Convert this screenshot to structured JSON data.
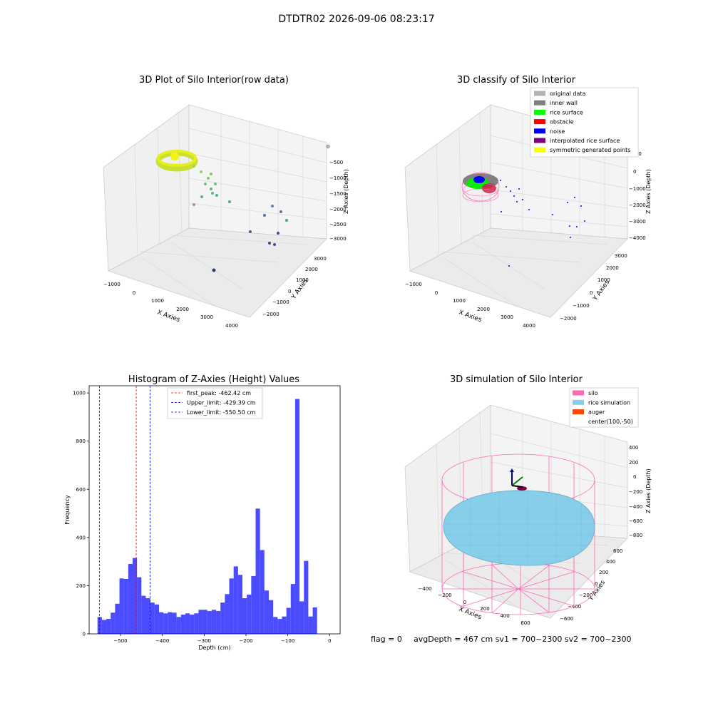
{
  "suptitle": "DTDTR02 2026-09-06 08:23:17",
  "footer": {
    "flag": "flag = 0",
    "stats": "avgDepth = 467 cm  sv1 = 700~2300  sv2 = 700~2300"
  },
  "plot1": {
    "title": "3D Plot of Silo Interior(row data)",
    "xlabel": "X Axies",
    "ylabel": "Y Axies",
    "zlabel": "Z Axies (Depth)",
    "xticks": [
      "−1000",
      "0",
      "1000",
      "2000",
      "3000",
      "4000"
    ],
    "yticks": [
      "−2000",
      "−1000",
      "0",
      "1000",
      "2000",
      "3000"
    ],
    "zticks": [
      "0",
      "−500",
      "−1000",
      "−1500",
      "−2000",
      "−2500",
      "−3000"
    ]
  },
  "plot2": {
    "title": "3D classify of Silo Interior",
    "xlabel": "X Axies",
    "ylabel": "Y Axies",
    "zlabel": "Z Axies (Depth)",
    "xticks": [
      "−1000",
      "0",
      "1000",
      "2000",
      "3000",
      "4000"
    ],
    "yticks": [
      "−2000",
      "−1000",
      "0",
      "1000",
      "2000",
      "3000"
    ],
    "zticks": [
      "1000",
      "0",
      "−1000",
      "−2000",
      "−3000",
      "−4000"
    ],
    "legend": [
      {
        "label": "original data",
        "color": "#b3b3b3"
      },
      {
        "label": "inner wall",
        "color": "#808080"
      },
      {
        "label": "rice surface",
        "color": "#00ff00"
      },
      {
        "label": "obstacle",
        "color": "#ff0000"
      },
      {
        "label": "noise",
        "color": "#0000ff"
      },
      {
        "label": "interpolated rice surface",
        "color": "#800080"
      },
      {
        "label": "symmetric generated points",
        "color": "#ffff00"
      }
    ]
  },
  "plot4": {
    "title": "3D simulation of Silo Interior",
    "xlabel": "X Axies",
    "ylabel": "Y Axies",
    "zlabel": "Z Axies (Depth)",
    "xticks": [
      "−400",
      "−200",
      "0",
      "200",
      "400",
      "600"
    ],
    "yticks": [
      "−600",
      "−400",
      "−200",
      "0",
      "200",
      "400",
      "600"
    ],
    "zticks": [
      "400",
      "200",
      "0",
      "−200",
      "−400",
      "−600",
      "−800"
    ],
    "legend": [
      {
        "label": "silo",
        "color": "#ff69b4"
      },
      {
        "label": "rice simulation",
        "color": "#87ceeb"
      },
      {
        "label": "auger",
        "color": "#ff4500"
      },
      {
        "label": "center(100,-50)",
        "color": ""
      }
    ]
  },
  "chart_data": {
    "type": "bar",
    "title": "Histogram of Z-Axies (Height) Values",
    "xlabel": "Depth (cm)",
    "ylabel": "Frequency",
    "xlim": [
      -575,
      25
    ],
    "ylim": [
      0,
      1030
    ],
    "xticks": [
      -500,
      -400,
      -300,
      -200,
      -100,
      0
    ],
    "yticks": [
      0,
      200,
      400,
      600,
      800,
      1000
    ],
    "bin_start": -555,
    "bin_width": 10.5,
    "values": [
      70,
      58,
      62,
      88,
      125,
      230,
      228,
      290,
      315,
      235,
      158,
      148,
      130,
      122,
      90,
      85,
      90,
      88,
      70,
      80,
      85,
      80,
      85,
      100,
      100,
      95,
      100,
      95,
      130,
      165,
      230,
      280,
      245,
      148,
      163,
      240,
      520,
      348,
      180,
      140,
      70,
      62,
      72,
      108,
      207,
      975,
      135,
      303,
      72,
      110
    ],
    "bar_color": "#0000ff",
    "lines": [
      {
        "label": "first_peak: -462.42 cm",
        "value": -462.42,
        "color": "#ff0000"
      },
      {
        "label": "Upper_limit: -429.39 cm",
        "value": -429.39,
        "color": "#0000ff"
      },
      {
        "label": "Lower_limit: -550.50 cm",
        "value": -550.5,
        "color": "#0000ff"
      }
    ]
  }
}
